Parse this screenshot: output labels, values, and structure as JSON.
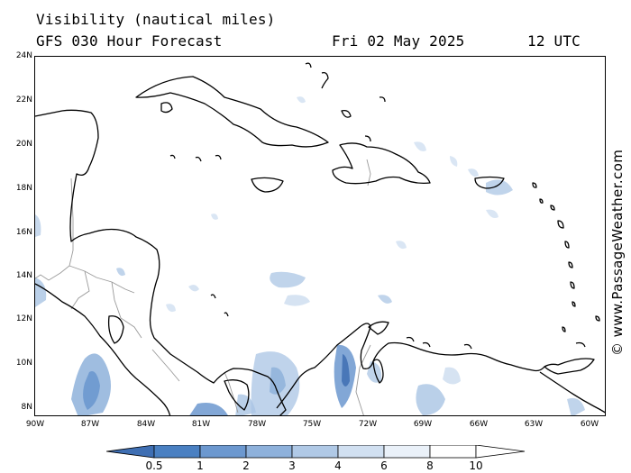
{
  "header": {
    "title": "Visibility (nautical miles)",
    "model": "GFS 030 Hour Forecast",
    "date": "Fri 02 May 2025",
    "time": "12 UTC"
  },
  "credit": "© www.PassageWeather.com",
  "axes": {
    "lat_labels": [
      "24N",
      "22N",
      "20N",
      "18N",
      "16N",
      "14N",
      "12N",
      "10N",
      "8N"
    ],
    "lon_labels": [
      "90W",
      "87W",
      "84W",
      "81W",
      "78W",
      "75W",
      "72W",
      "69W",
      "66W",
      "63W",
      "60W"
    ]
  },
  "legend": {
    "labels": [
      "0.5",
      "1",
      "2",
      "3",
      "4",
      "6",
      "8",
      "10"
    ],
    "colors": [
      "#3f6fb3",
      "#4a80c2",
      "#6c98cf",
      "#8eb1db",
      "#b0c9e6",
      "#d1e0f1",
      "#eaf1f9",
      "#ffffff"
    ]
  },
  "colors": {
    "land_outline": "#000000",
    "border": "#9a9a9a",
    "low_vis": "#6c98cf",
    "mid_vis": "#a9c4e4",
    "high_vis": "#d6e4f3"
  }
}
